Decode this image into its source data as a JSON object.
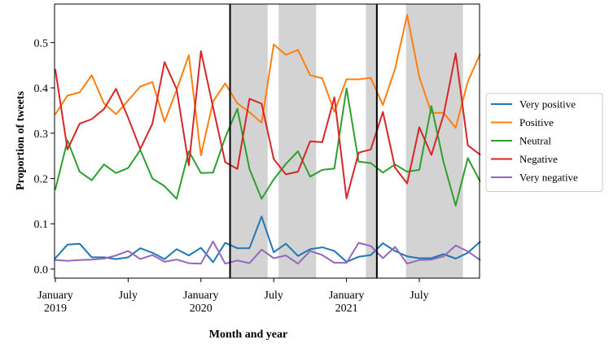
{
  "chart_data": {
    "type": "line",
    "xlabel": "Month and year",
    "ylabel": "Proportion of tweets",
    "ylim": [
      -0.02,
      0.585
    ],
    "yticks": [
      0.0,
      0.1,
      0.2,
      0.3,
      0.4,
      0.5
    ],
    "ytick_labels": [
      "0.0",
      "0.1",
      "0.2",
      "0.3",
      "0.4",
      "0.5"
    ],
    "x_count": 36,
    "xticks": [
      {
        "index": 0,
        "lines": [
          "January",
          "2019"
        ]
      },
      {
        "index": 6,
        "lines": [
          "July"
        ]
      },
      {
        "index": 12,
        "lines": [
          "January",
          "2020"
        ]
      },
      {
        "index": 18,
        "lines": [
          "July"
        ]
      },
      {
        "index": 24,
        "lines": [
          "January",
          "2021"
        ]
      },
      {
        "index": 30,
        "lines": [
          "July"
        ]
      }
    ],
    "shaded_ranges": [
      [
        14.4,
        17.5
      ],
      [
        18.4,
        21.5
      ],
      [
        25.6,
        26.5
      ],
      [
        28.9,
        33.6
      ]
    ],
    "vertical_lines": [
      14.4,
      26.5
    ],
    "legend_position": "right",
    "series": [
      {
        "name": "Very positive",
        "color": "#1f77b4",
        "values": [
          0.024,
          0.054,
          0.056,
          0.026,
          0.026,
          0.022,
          0.026,
          0.046,
          0.036,
          0.022,
          0.044,
          0.03,
          0.047,
          0.015,
          0.058,
          0.046,
          0.046,
          0.116,
          0.037,
          0.056,
          0.029,
          0.044,
          0.048,
          0.04,
          0.016,
          0.027,
          0.031,
          0.057,
          0.04,
          0.028,
          0.024,
          0.024,
          0.033,
          0.023,
          0.036,
          0.06
        ]
      },
      {
        "name": "Positive",
        "color": "#ff7f0e",
        "values": [
          0.342,
          0.383,
          0.39,
          0.428,
          0.366,
          0.342,
          0.372,
          0.403,
          0.413,
          0.325,
          0.396,
          0.472,
          0.251,
          0.37,
          0.41,
          0.366,
          0.346,
          0.323,
          0.496,
          0.473,
          0.484,
          0.428,
          0.421,
          0.347,
          0.419,
          0.419,
          0.422,
          0.362,
          0.442,
          0.561,
          0.424,
          0.345,
          0.345,
          0.312,
          0.414,
          0.474
        ]
      },
      {
        "name": "Neutral",
        "color": "#2ca02c",
        "values": [
          0.176,
          0.284,
          0.215,
          0.196,
          0.231,
          0.212,
          0.223,
          0.263,
          0.2,
          0.183,
          0.155,
          0.26,
          0.212,
          0.213,
          0.29,
          0.354,
          0.221,
          0.155,
          0.198,
          0.232,
          0.26,
          0.204,
          0.219,
          0.222,
          0.399,
          0.237,
          0.234,
          0.213,
          0.231,
          0.215,
          0.219,
          0.36,
          0.236,
          0.14,
          0.245,
          0.194
        ]
      },
      {
        "name": "Negative",
        "color": "#d62728",
        "values": [
          0.44,
          0.264,
          0.321,
          0.331,
          0.353,
          0.398,
          0.334,
          0.265,
          0.321,
          0.457,
          0.397,
          0.229,
          0.481,
          0.357,
          0.236,
          0.221,
          0.376,
          0.365,
          0.243,
          0.209,
          0.215,
          0.282,
          0.28,
          0.379,
          0.156,
          0.257,
          0.264,
          0.347,
          0.224,
          0.189,
          0.313,
          0.252,
          0.34,
          0.476,
          0.273,
          0.253
        ]
      },
      {
        "name": "Very negative",
        "color": "#9467bd",
        "values": [
          0.02,
          0.018,
          0.02,
          0.021,
          0.023,
          0.03,
          0.04,
          0.022,
          0.031,
          0.016,
          0.021,
          0.013,
          0.012,
          0.061,
          0.012,
          0.019,
          0.013,
          0.043,
          0.024,
          0.03,
          0.012,
          0.04,
          0.031,
          0.014,
          0.014,
          0.058,
          0.051,
          0.024,
          0.049,
          0.012,
          0.02,
          0.021,
          0.028,
          0.052,
          0.039,
          0.02
        ]
      }
    ]
  }
}
